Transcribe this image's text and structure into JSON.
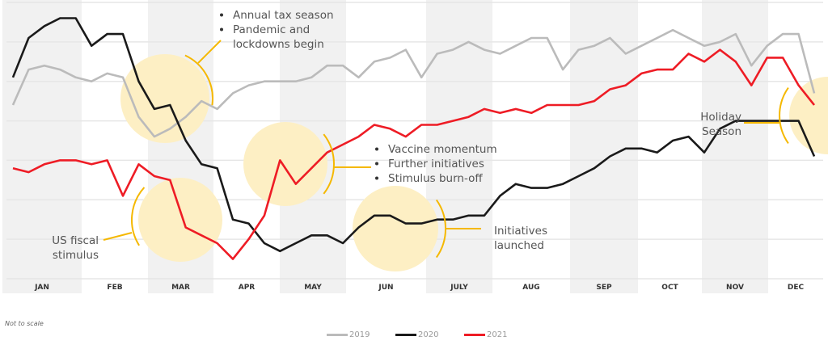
{
  "chart_data": {
    "type": "line",
    "title": "",
    "xlabel": "",
    "ylabel": "",
    "categories": [
      "JAN",
      "FEB",
      "MAR",
      "APR",
      "MAY",
      "JUN",
      "JULY",
      "AUG",
      "SEP",
      "OCT",
      "NOV",
      "DEC"
    ],
    "shaded_months": [
      "JAN",
      "MAR",
      "MAY",
      "JULY",
      "SEP",
      "NOV"
    ],
    "ylim": [
      0,
      7
    ],
    "grid": true,
    "legend_position": "bottom-center",
    "weeks_per_series": 52,
    "series": [
      {
        "name": "2019",
        "color": "#bbbbbb",
        "values": [
          4.4,
          5.3,
          5.4,
          5.3,
          5.1,
          5.0,
          5.2,
          5.1,
          4.1,
          3.6,
          3.8,
          4.1,
          4.5,
          4.3,
          4.7,
          4.9,
          5.0,
          5.0,
          5.0,
          5.1,
          5.4,
          5.4,
          5.1,
          5.5,
          5.6,
          5.8,
          5.1,
          5.7,
          5.8,
          6.0,
          5.8,
          5.7,
          5.9,
          6.1,
          6.1,
          5.3,
          5.8,
          5.9,
          6.1,
          5.7,
          5.9,
          6.1,
          6.3,
          6.1,
          5.9,
          6.0,
          6.2,
          5.4,
          5.9,
          6.2,
          6.2,
          4.7
        ]
      },
      {
        "name": "2020",
        "color": "#1a1a1a",
        "values": [
          5.1,
          6.1,
          6.4,
          6.6,
          6.6,
          5.9,
          6.2,
          6.2,
          5.0,
          4.3,
          4.4,
          3.5,
          2.9,
          2.8,
          1.5,
          1.4,
          0.9,
          0.7,
          0.9,
          1.1,
          1.1,
          0.9,
          1.3,
          1.6,
          1.6,
          1.4,
          1.4,
          1.5,
          1.5,
          1.6,
          1.6,
          2.1,
          2.4,
          2.3,
          2.3,
          2.4,
          2.6,
          2.8,
          3.1,
          3.3,
          3.3,
          3.2,
          3.5,
          3.6,
          3.2,
          3.8,
          4.0,
          4.0,
          4.0,
          4.0,
          4.0,
          3.1
        ]
      },
      {
        "name": "2021",
        "color": "#ee1c25",
        "values": [
          2.8,
          2.7,
          2.9,
          3.0,
          3.0,
          2.9,
          3.0,
          2.1,
          2.9,
          2.6,
          2.5,
          1.3,
          1.1,
          0.9,
          0.5,
          1.0,
          1.6,
          3.0,
          2.4,
          2.8,
          3.2,
          3.4,
          3.6,
          3.9,
          3.8,
          3.6,
          3.9,
          3.9,
          4.0,
          4.1,
          4.3,
          4.2,
          4.3,
          4.2,
          4.4,
          4.4,
          4.4,
          4.5,
          4.8,
          4.9,
          5.2,
          5.3,
          5.3,
          5.7,
          5.5,
          5.8,
          5.5,
          4.9,
          5.6,
          5.6,
          4.9,
          4.4
        ]
      }
    ],
    "annotations": [
      {
        "id": "tax",
        "lines": [
          "Annual tax season",
          "Pandemic and",
          "lockdowns begin"
        ],
        "bulleted": true,
        "near": "MAR"
      },
      {
        "id": "vaccine",
        "lines": [
          "Vaccine momentum",
          "Further initiatives",
          "Stimulus burn-off"
        ],
        "bulleted": true,
        "near": "MAY"
      },
      {
        "id": "fiscal",
        "lines": [
          "US fiscal",
          "stimulus"
        ],
        "bulleted": false,
        "near": "MAR"
      },
      {
        "id": "initiatives",
        "lines": [
          "Initiatives",
          "launched"
        ],
        "bulleted": false,
        "near": "JUN"
      },
      {
        "id": "holiday",
        "lines": [
          "Holiday",
          "Season"
        ],
        "bulleted": false,
        "near": "DEC"
      }
    ]
  },
  "footnote": "Not to scale",
  "legend": [
    {
      "label": "2019",
      "color": "#bbbbbb"
    },
    {
      "label": "2020",
      "color": "#1a1a1a"
    },
    {
      "label": "2021",
      "color": "#ee1c25"
    }
  ],
  "colors": {
    "band": "#f1f1f1",
    "grid": "#e6e6e6",
    "highlight_circle": "#fdefc4",
    "callout": "#f5b800"
  }
}
